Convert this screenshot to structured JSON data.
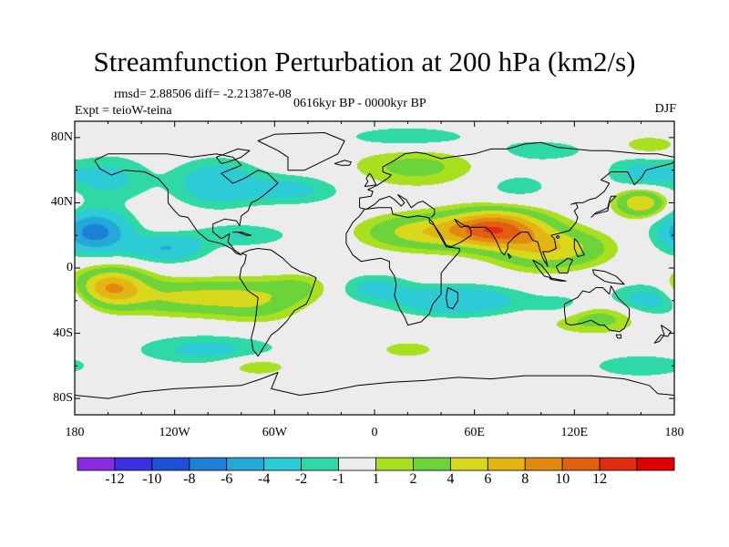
{
  "title": "Streamfunction Perturbation at 200 hPa (km2/s)",
  "stats": "rmsd= 2.88506 diff= -2.21387e-08",
  "experiment": "Expt = teioW-teina",
  "period": "0616kyr BP - 0000kyr BP",
  "season": "DJF",
  "lat_labels": [
    {
      "text": "80N",
      "lat": 80
    },
    {
      "text": "40N",
      "lat": 40
    },
    {
      "text": "0",
      "lat": 0
    },
    {
      "text": "40S",
      "lat": -40
    },
    {
      "text": "80S",
      "lat": -80
    }
  ],
  "lon_labels": [
    {
      "text": "180",
      "lon": -180
    },
    {
      "text": "120W",
      "lon": -120
    },
    {
      "text": "60W",
      "lon": -60
    },
    {
      "text": "0",
      "lon": 0
    },
    {
      "text": "60E",
      "lon": 60
    },
    {
      "text": "120E",
      "lon": 120
    },
    {
      "text": "180",
      "lon": 180
    }
  ],
  "colorbar": {
    "colors": [
      "#8a2be2",
      "#3b30e0",
      "#1e4fd8",
      "#1d7fd6",
      "#23a8d8",
      "#2ccbd6",
      "#2fd9a6",
      "#ececec",
      "#a8e020",
      "#6cd43a",
      "#d8d81c",
      "#e2b414",
      "#e28a10",
      "#e25e10",
      "#e02c10",
      "#e00000"
    ],
    "labels": [
      "-12",
      "-10",
      "-8",
      "-6",
      "-4",
      "-2",
      "-1",
      "1",
      "2",
      "4",
      "6",
      "8",
      "10",
      "12"
    ]
  },
  "chart_data": {
    "type": "heatmap",
    "title": "Streamfunction Perturbation at 200 hPa (km2/s)",
    "variable": "streamfunction perturbation",
    "units": "km2/s",
    "level": "200 hPa",
    "xlim": [
      -180,
      180
    ],
    "ylim": [
      -90,
      90
    ],
    "contour_levels": [
      -12,
      -10,
      -8,
      -6,
      -4,
      -2,
      -1,
      1,
      2,
      4,
      6,
      8,
      10,
      12
    ],
    "features": [
      {
        "lon": 72,
        "lat": 24,
        "value": 11,
        "rlon": 28,
        "rlat": 11
      },
      {
        "lon": 28,
        "lat": 22,
        "value": 5,
        "rlon": 32,
        "rlat": 10
      },
      {
        "lon": 100,
        "lat": 12,
        "value": 5,
        "rlon": 26,
        "rlat": 12
      },
      {
        "lon": 125,
        "lat": 12,
        "value": 2,
        "rlon": 22,
        "rlat": 10
      },
      {
        "lon": -158,
        "lat": -12,
        "value": 8,
        "rlon": 20,
        "rlat": 11
      },
      {
        "lon": -110,
        "lat": -18,
        "value": 4.5,
        "rlon": 38,
        "rlat": 10
      },
      {
        "lon": -70,
        "lat": -20,
        "value": 3,
        "rlon": 25,
        "rlat": 12
      },
      {
        "lon": -45,
        "lat": -12,
        "value": 2,
        "rlon": 18,
        "rlat": 8
      },
      {
        "lon": -168,
        "lat": 22,
        "value": -7,
        "rlon": 20,
        "rlat": 12
      },
      {
        "lon": -125,
        "lat": 12,
        "value": -4,
        "rlon": 22,
        "rlat": 8
      },
      {
        "lon": -160,
        "lat": 55,
        "value": -2.5,
        "rlon": 25,
        "rlat": 14
      },
      {
        "lon": -95,
        "lat": 52,
        "value": -3.5,
        "rlon": 25,
        "rlat": 14
      },
      {
        "lon": -50,
        "lat": 48,
        "value": -2.5,
        "rlon": 30,
        "rlat": 9
      },
      {
        "lon": -80,
        "lat": 20,
        "value": -2,
        "rlon": 30,
        "rlat": 7
      },
      {
        "lon": 25,
        "lat": 62,
        "value": 2.5,
        "rlon": 38,
        "rlat": 12
      },
      {
        "lon": 20,
        "lat": 80,
        "value": -2,
        "rlon": 40,
        "rlat": 7
      },
      {
        "lon": 100,
        "lat": 72,
        "value": -1.5,
        "rlon": 35,
        "rlat": 8
      },
      {
        "lon": 160,
        "lat": 40,
        "value": 6,
        "rlon": 14,
        "rlat": 8
      },
      {
        "lon": 160,
        "lat": 58,
        "value": -2.5,
        "rlon": 20,
        "rlat": 10
      },
      {
        "lon": 165,
        "lat": 75,
        "value": 2,
        "rlon": 18,
        "rlat": 6
      },
      {
        "lon": 85,
        "lat": 50,
        "value": -1.5,
        "rlon": 25,
        "rlat": 10
      },
      {
        "lon": 50,
        "lat": -20,
        "value": -4,
        "rlon": 38,
        "rlat": 9
      },
      {
        "lon": 0,
        "lat": -12,
        "value": -2.5,
        "rlon": 20,
        "rlat": 8
      },
      {
        "lon": 115,
        "lat": -25,
        "value": -2.5,
        "rlon": 20,
        "rlat": 8
      },
      {
        "lon": 130,
        "lat": -30,
        "value": 3.5,
        "rlon": 28,
        "rlat": 9
      },
      {
        "lon": 165,
        "lat": -20,
        "value": -3,
        "rlon": 25,
        "rlat": 10
      },
      {
        "lon": -100,
        "lat": -50,
        "value": -2.5,
        "rlon": 42,
        "rlat": 9
      },
      {
        "lon": 20,
        "lat": -50,
        "value": 1.5,
        "rlon": 20,
        "rlat": 6
      },
      {
        "lon": -70,
        "lat": -60,
        "value": 2,
        "rlon": 20,
        "rlat": 6
      },
      {
        "lon": 160,
        "lat": -60,
        "value": -2,
        "rlon": 30,
        "rlat": 7
      }
    ]
  }
}
